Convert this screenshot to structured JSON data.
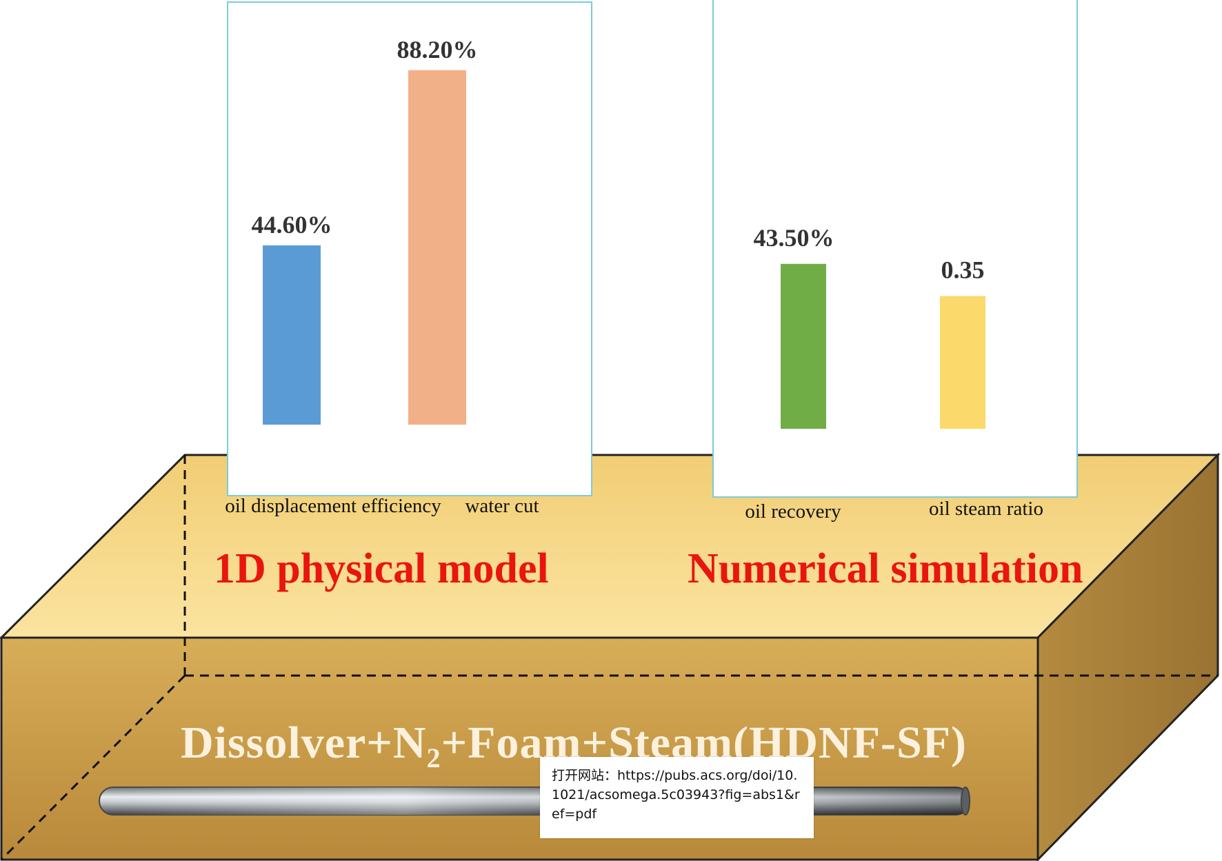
{
  "chart_data": [
    {
      "type": "bar",
      "title": "1D physical model",
      "categories": [
        "oil displacement efficiency",
        "water cut"
      ],
      "values": [
        44.6,
        88.2
      ],
      "value_labels": [
        "44.60%",
        "88.20%"
      ],
      "colors": [
        "#5b9bd5",
        "#f2b089"
      ],
      "ylim": [
        0,
        100
      ]
    },
    {
      "type": "bar",
      "title": "Numerical simulation",
      "categories": [
        "oil recovery",
        "oil steam ratio"
      ],
      "values": [
        43.5,
        0.35
      ],
      "value_labels": [
        "43.50%",
        "0.35"
      ],
      "colors": [
        "#70ad47",
        "#fbd96b"
      ]
    }
  ],
  "process": {
    "prefix": "Dissolver+N",
    "subscript": "2",
    "suffix": "+Foam+Steam(HDNF-SF)"
  },
  "tooltip": {
    "text": "打开网站：https://pubs.acs.org/doi/10.1021/acsomega.5c03943?fig=abs1&ref=pdf"
  },
  "colors": {
    "title_red": "#e8160e",
    "box_top": "#f3cf72",
    "box_front": "#c99b45",
    "box_side": "#a8823e"
  }
}
